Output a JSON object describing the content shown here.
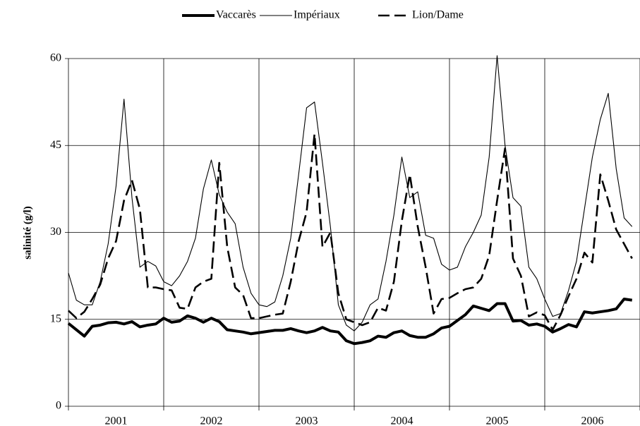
{
  "chart_data": {
    "type": "line",
    "y_label": "salinité (g/l)",
    "categories": [
      null,
      null,
      null,
      null,
      null,
      null,
      "2001",
      null,
      null,
      null,
      null,
      null,
      null,
      null,
      null,
      null,
      null,
      null,
      "2002",
      null,
      null,
      null,
      null,
      null,
      null,
      null,
      null,
      null,
      null,
      null,
      "2003",
      null,
      null,
      null,
      null,
      null,
      null,
      null,
      null,
      null,
      null,
      null,
      "2004",
      null,
      null,
      null,
      null,
      null,
      null,
      null,
      null,
      null,
      null,
      null,
      "2005",
      null,
      null,
      null,
      null,
      null,
      null,
      null,
      null,
      null,
      null,
      null,
      "2006",
      null,
      null,
      null,
      null,
      null
    ],
    "series": [
      {
        "name": "Vaccarès",
        "color": "#000000",
        "line_style": "thick",
        "values": [
          14.3,
          13.2,
          12.1,
          13.8,
          14.0,
          14.4,
          14.5,
          14.2,
          14.6,
          13.7,
          14.0,
          14.2,
          15.2,
          14.5,
          14.7,
          15.6,
          15.2,
          14.5,
          15.2,
          14.6,
          13.2,
          13.0,
          12.8,
          12.5,
          12.7,
          12.9,
          13.1,
          13.1,
          13.4,
          13.0,
          12.7,
          13.0,
          13.6,
          13.0,
          12.8,
          11.3,
          10.8,
          11.0,
          11.3,
          12.1,
          11.9,
          12.7,
          13.0,
          12.2,
          11.9,
          11.9,
          12.5,
          13.5,
          13.8,
          14.8,
          15.8,
          17.3,
          16.9,
          16.5,
          17.7,
          17.7,
          14.7,
          14.8,
          14.0,
          14.2,
          13.8,
          12.8,
          13.4,
          14.1,
          13.7,
          16.3,
          16.1,
          16.3,
          16.5,
          16.8,
          18.5,
          18.3
        ]
      },
      {
        "name": "Impériaux",
        "color": "#000000",
        "line_style": "thin",
        "values": [
          23.0,
          18.3,
          17.5,
          17.5,
          21.5,
          28.0,
          38.0,
          53.0,
          36.0,
          24.0,
          25.0,
          24.2,
          21.5,
          20.8,
          22.5,
          25.0,
          29.0,
          37.5,
          42.5,
          36.5,
          33.5,
          31.5,
          24.0,
          19.5,
          17.5,
          17.2,
          18.0,
          22.5,
          29.0,
          40.0,
          51.5,
          52.5,
          42.0,
          31.0,
          17.5,
          14.0,
          13.0,
          14.5,
          17.5,
          18.5,
          25.0,
          33.0,
          43.0,
          36.0,
          37.0,
          29.5,
          29.0,
          24.5,
          23.5,
          24.0,
          27.5,
          30.0,
          33.0,
          43.0,
          60.5,
          45.0,
          36.0,
          34.5,
          24.0,
          22.0,
          18.5,
          15.5,
          16.0,
          20.0,
          25.0,
          34.0,
          43.0,
          49.5,
          54.0,
          41.0,
          32.5,
          31.0
        ]
      },
      {
        "name": "Lion/Dame",
        "color": "#000000",
        "line_style": "dashed",
        "values": [
          16.5,
          15.2,
          16.3,
          18.5,
          21.0,
          25.5,
          28.5,
          35.5,
          39.0,
          34.0,
          20.5,
          20.5,
          20.2,
          20.0,
          17.0,
          16.8,
          20.5,
          21.5,
          22.0,
          42.0,
          27.5,
          20.5,
          19.2,
          15.2,
          15.2,
          15.5,
          15.8,
          16.0,
          21.5,
          28.5,
          33.5,
          47.0,
          27.5,
          30.0,
          19.5,
          15.0,
          14.5,
          14.0,
          14.5,
          17.0,
          16.5,
          21.5,
          32.0,
          40.0,
          31.0,
          24.0,
          16.0,
          18.5,
          18.7,
          19.5,
          20.2,
          20.5,
          22.0,
          26.0,
          35.5,
          44.5,
          25.5,
          22.5,
          15.5,
          16.2,
          15.7,
          13.2,
          15.8,
          19.0,
          22.0,
          26.5,
          24.8,
          40.0,
          35.5,
          30.5,
          28.0,
          25.5
        ]
      }
    ],
    "ylim": [
      0,
      60
    ],
    "yticks": [
      0,
      15,
      30,
      45,
      60
    ],
    "grid": true,
    "legend": "top"
  }
}
